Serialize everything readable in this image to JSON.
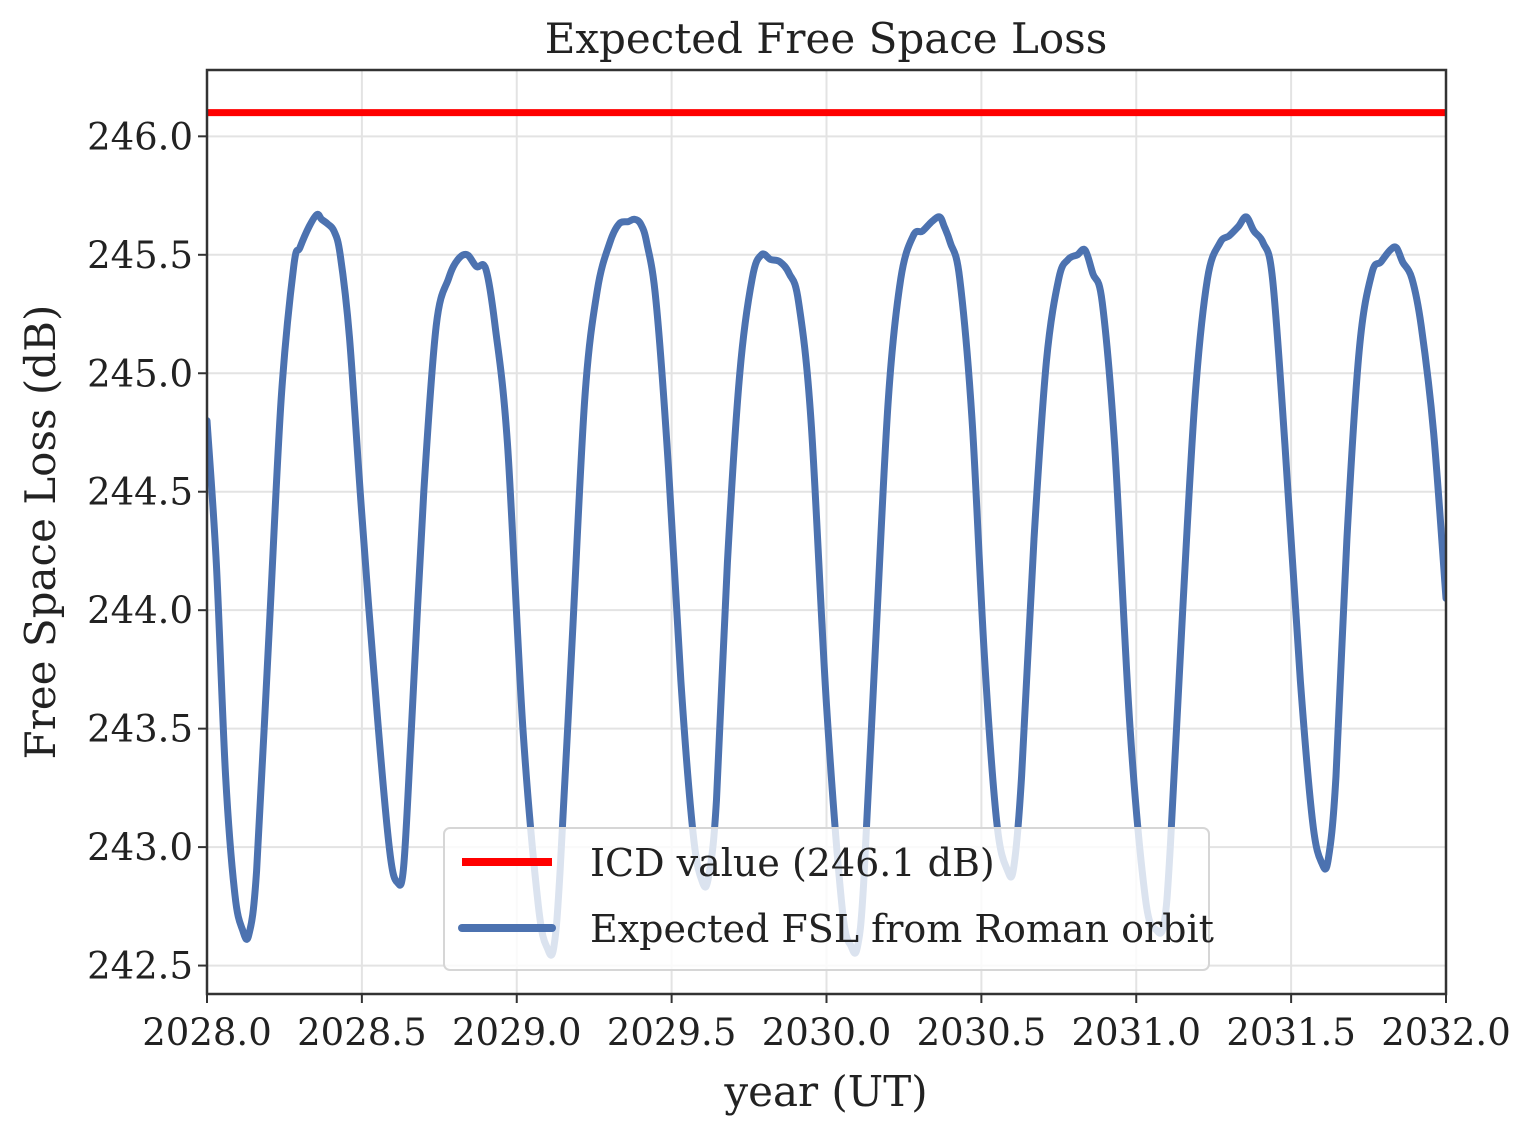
{
  "chart_data": {
    "type": "line",
    "title": "Expected Free Space Loss",
    "xlabel": "year (UT)",
    "ylabel": "Free Space Loss (dB)",
    "xlim": [
      2028.0,
      2032.0
    ],
    "ylim": [
      242.38,
      246.28
    ],
    "x_ticks": [
      2028.0,
      2028.5,
      2029.0,
      2029.5,
      2030.0,
      2030.5,
      2031.0,
      2031.5,
      2032.0
    ],
    "x_tick_labels": [
      "2028.0",
      "2028.5",
      "2029.0",
      "2029.5",
      "2030.0",
      "2030.5",
      "2031.0",
      "2031.5",
      "2032.0"
    ],
    "y_ticks": [
      242.5,
      243.0,
      243.5,
      244.0,
      244.5,
      245.0,
      245.5,
      246.0
    ],
    "y_tick_labels": [
      "242.5",
      "243.0",
      "243.5",
      "244.0",
      "244.5",
      "245.0",
      "245.5",
      "246.0"
    ],
    "grid": true,
    "legend": "lower-center",
    "series": [
      {
        "name": "ICD value (246.1 dB)",
        "color": "#ff0000",
        "x": [
          2028.0,
          2032.0
        ],
        "y": [
          246.1,
          246.1
        ]
      },
      {
        "name": "Expected FSL from Roman orbit",
        "color": "#4c72b0",
        "x": [
          2028.0,
          2028.03,
          2028.06,
          2028.09,
          2028.115,
          2028.135,
          2028.16,
          2028.2,
          2028.24,
          2028.28,
          2028.3,
          2028.33,
          2028.355,
          2028.37,
          2028.39,
          2028.41,
          2028.43,
          2028.46,
          2028.5,
          2028.55,
          2028.59,
          2028.615,
          2028.635,
          2028.66,
          2028.7,
          2028.74,
          2028.78,
          2028.81,
          2028.84,
          2028.87,
          2028.9,
          2028.93,
          2028.97,
          2029.02,
          2029.07,
          2029.1,
          2029.12,
          2029.14,
          2029.18,
          2029.22,
          2029.26,
          2029.3,
          2029.33,
          2029.36,
          2029.38,
          2029.4,
          2029.42,
          2029.45,
          2029.49,
          2029.53,
          2029.57,
          2029.6,
          2029.62,
          2029.645,
          2029.68,
          2029.72,
          2029.76,
          2029.79,
          2029.82,
          2029.85,
          2029.88,
          2029.91,
          2029.95,
          2030.0,
          2030.05,
          2030.08,
          2030.1,
          2030.12,
          2030.16,
          2030.2,
          2030.24,
          2030.28,
          2030.31,
          2030.34,
          2030.365,
          2030.38,
          2030.4,
          2030.43,
          2030.47,
          2030.51,
          2030.55,
          2030.585,
          2030.605,
          2030.63,
          2030.67,
          2030.71,
          2030.75,
          2030.78,
          2030.81,
          2030.835,
          2030.86,
          2030.89,
          2030.93,
          2030.98,
          2031.03,
          2031.065,
          2031.09,
          2031.11,
          2031.15,
          2031.19,
          2031.23,
          2031.27,
          2031.3,
          2031.33,
          2031.355,
          2031.38,
          2031.41,
          2031.44,
          2031.48,
          2031.53,
          2031.57,
          2031.6,
          2031.62,
          2031.645,
          2031.68,
          2031.72,
          2031.76,
          2031.79,
          2031.82,
          2031.84,
          2031.86,
          2031.89,
          2031.92,
          2031.96,
          2032.0
        ],
        "y": [
          244.8,
          244.2,
          243.3,
          242.8,
          242.65,
          242.63,
          242.9,
          243.9,
          244.9,
          245.45,
          245.53,
          245.62,
          245.67,
          245.65,
          245.63,
          245.6,
          245.5,
          245.15,
          244.4,
          243.55,
          242.98,
          242.85,
          242.92,
          243.5,
          244.5,
          245.2,
          245.4,
          245.48,
          245.5,
          245.45,
          245.44,
          245.2,
          244.7,
          243.5,
          242.75,
          242.57,
          242.58,
          242.9,
          243.9,
          244.9,
          245.35,
          245.55,
          245.63,
          245.64,
          245.65,
          245.63,
          245.55,
          245.3,
          244.6,
          243.7,
          243.05,
          242.85,
          242.88,
          243.2,
          244.2,
          245.0,
          245.4,
          245.5,
          245.48,
          245.47,
          245.42,
          245.3,
          244.8,
          243.6,
          242.75,
          242.58,
          242.58,
          242.85,
          243.9,
          244.9,
          245.4,
          245.58,
          245.6,
          245.64,
          245.66,
          245.62,
          245.55,
          245.4,
          244.8,
          243.8,
          243.1,
          242.9,
          242.92,
          243.3,
          244.3,
          245.05,
          245.4,
          245.48,
          245.5,
          245.52,
          245.42,
          245.3,
          244.7,
          243.5,
          242.78,
          242.65,
          242.68,
          243.0,
          244.0,
          244.9,
          245.4,
          245.55,
          245.58,
          245.62,
          245.66,
          245.6,
          245.55,
          245.4,
          244.7,
          243.7,
          243.1,
          242.93,
          242.95,
          243.3,
          244.3,
          245.1,
          245.42,
          245.47,
          245.52,
          245.53,
          245.47,
          245.4,
          245.2,
          244.75,
          244.05
        ]
      }
    ]
  }
}
